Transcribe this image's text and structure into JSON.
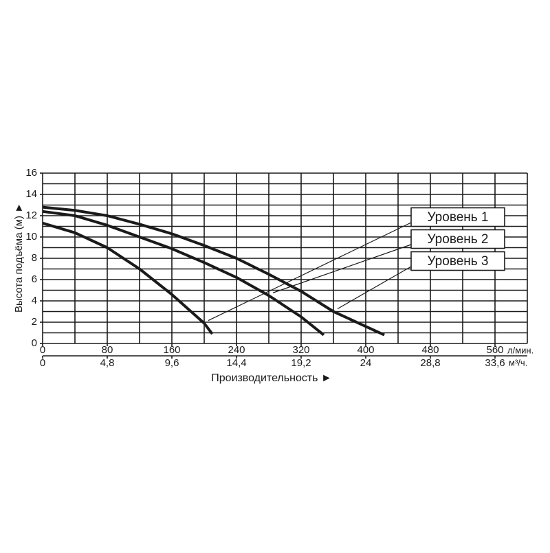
{
  "chart_data": {
    "type": "line",
    "y_label": "Высота подъёма (м) ►",
    "x_label": "Производительность ►",
    "x_unit": "л/мин.",
    "x2_unit": "м³/ч.",
    "xlim": [
      0,
      600
    ],
    "xticks": [
      0,
      80,
      160,
      240,
      320,
      400,
      480,
      560
    ],
    "xgrid": [
      0,
      40,
      80,
      120,
      160,
      200,
      240,
      280,
      320,
      360,
      400,
      440,
      480,
      520,
      560,
      600
    ],
    "x2lim": [
      0,
      36
    ],
    "x2ticks": [
      0,
      {
        "value": 4.8,
        "label": "4,8"
      },
      {
        "value": 9.6,
        "label": "9,6"
      },
      {
        "value": 14.4,
        "label": "14,4"
      },
      {
        "value": 19.2,
        "label": "19,2"
      },
      {
        "value": 24,
        "label": "24"
      },
      {
        "value": 28.8,
        "label": "28,8"
      },
      {
        "value": 33.6,
        "label": "33,6"
      }
    ],
    "ylim": [
      0,
      16
    ],
    "yticks": [
      0,
      2,
      4,
      6,
      8,
      10,
      12,
      14,
      16
    ],
    "ygrid": [
      0,
      1,
      2,
      3,
      4,
      5,
      6,
      7,
      8,
      9,
      10,
      11,
      12,
      13,
      14,
      15,
      16
    ],
    "series": [
      {
        "name": "Уровень 1",
        "color": "#1a1a1a",
        "x": [
          0,
          40,
          80,
          120,
          160,
          200,
          210
        ],
        "values": [
          11.3,
          10.4,
          9.0,
          7.0,
          4.6,
          1.9,
          0.9
        ]
      },
      {
        "name": "Уровень 2",
        "color": "#1a1a1a",
        "x": [
          0,
          40,
          80,
          120,
          160,
          200,
          240,
          280,
          320,
          348
        ],
        "values": [
          12.4,
          12.0,
          11.1,
          10.0,
          8.9,
          7.6,
          6.2,
          4.5,
          2.5,
          0.8
        ]
      },
      {
        "name": "Уровень 3",
        "color": "#1a1a1a",
        "x": [
          0,
          40,
          80,
          120,
          160,
          200,
          240,
          280,
          320,
          360,
          400,
          423
        ],
        "values": [
          12.8,
          12.5,
          12.0,
          11.2,
          10.3,
          9.2,
          8.0,
          6.5,
          4.9,
          3.0,
          1.6,
          0.8
        ]
      }
    ]
  }
}
